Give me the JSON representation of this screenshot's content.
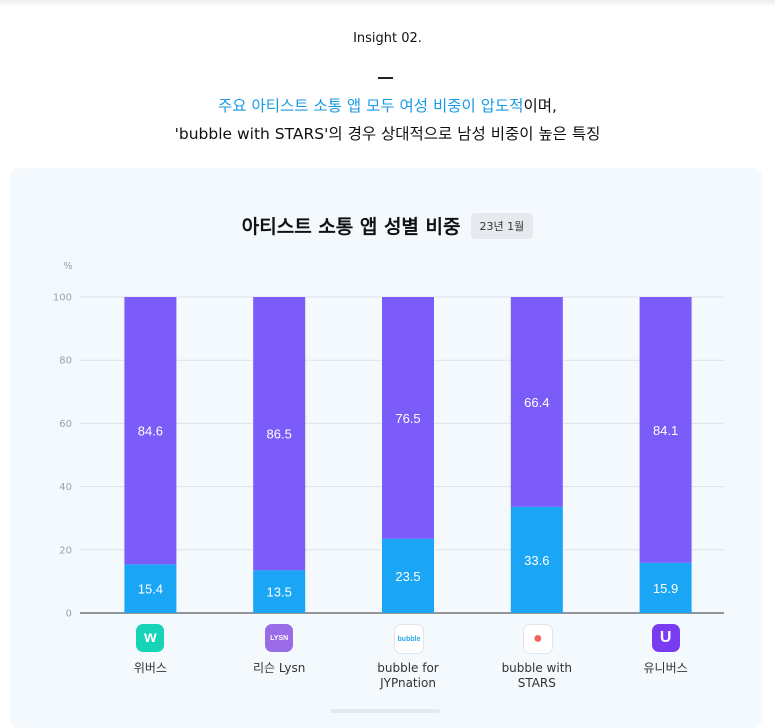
{
  "insight": {
    "label": "Insight 02.",
    "headline_highlight": "주요 아티스트 소통 앱 모두 여성 비중이 압도적",
    "headline_rest": "이며,",
    "headline_line2": "'bubble with STARS'의 경우 상대적으로 남성 비중이 높은 특징"
  },
  "chart_data": {
    "type": "bar",
    "stacked": true,
    "title": "아티스트 소통 앱 성별 비중",
    "date_badge": "23년 1월",
    "ylabel": "%",
    "ylim": [
      0,
      100
    ],
    "yticks": [
      0,
      20,
      40,
      60,
      80,
      100
    ],
    "grid": true,
    "categories": [
      "위버스",
      "리슨 Lysn",
      "bubble for JYPnation",
      "bubble with STARS",
      "유니버스"
    ],
    "category_lines": [
      [
        "위버스"
      ],
      [
        "리슨 Lysn"
      ],
      [
        "bubble for",
        "JYPnation"
      ],
      [
        "bubble with",
        "STARS"
      ],
      [
        "유니버스"
      ]
    ],
    "series": [
      {
        "values": [
          15.4,
          13.5,
          23.5,
          33.6,
          15.9
        ],
        "color": "#1aa6f4"
      },
      {
        "values": [
          84.6,
          86.5,
          76.5,
          66.4,
          84.1
        ],
        "color": "#7b5cf9"
      }
    ]
  },
  "app_icons": [
    {
      "name": "weverse-icon",
      "glyph": "w",
      "bg": "#17d4b8",
      "fg": "#ffffff"
    },
    {
      "name": "lysn-icon",
      "glyph": "LYSN",
      "bg": "#9a6ce8",
      "fg": "#ffffff"
    },
    {
      "name": "bubble-jyp-icon",
      "glyph": "bubble",
      "bg": "#ffffff",
      "fg": "#2aa8e8"
    },
    {
      "name": "bubble-stars-icon",
      "glyph": "●",
      "bg": "#ffffff",
      "fg": "#f0655c"
    },
    {
      "name": "universe-icon",
      "glyph": "U",
      "bg": "#7a3cf0",
      "fg": "#ffffff"
    }
  ]
}
